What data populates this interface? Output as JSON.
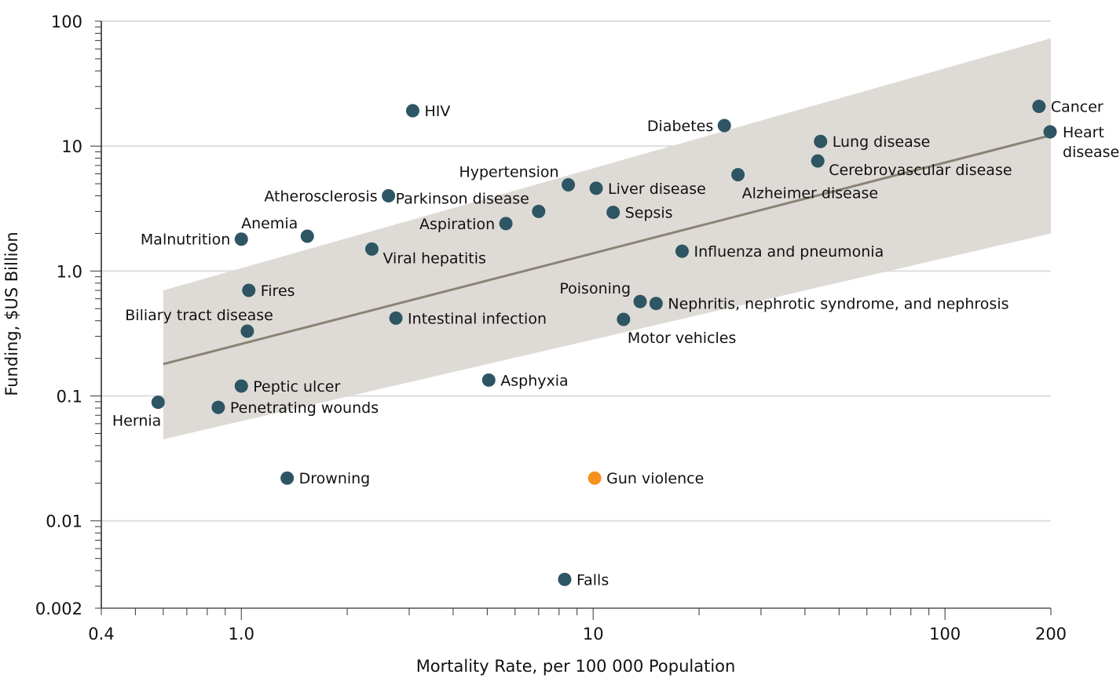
{
  "chart_data": {
    "type": "scatter",
    "title": "",
    "xlabel": "Mortality Rate, per 100 000 Population",
    "ylabel": "Funding, $US Billion",
    "xscale": "log",
    "yscale": "log",
    "xlim": [
      0.4,
      200
    ],
    "ylim": [
      0.002,
      100
    ],
    "x_ticks": [
      {
        "value": 0.4,
        "label": "0.4"
      },
      {
        "value": 1,
        "label": "1.0"
      },
      {
        "value": 10,
        "label": "10"
      },
      {
        "value": 100,
        "label": "100"
      },
      {
        "value": 200,
        "label": "200"
      }
    ],
    "y_ticks": [
      {
        "value": 100,
        "label": "100"
      },
      {
        "value": 10,
        "label": "10"
      },
      {
        "value": 1,
        "label": "1.0"
      },
      {
        "value": 0.1,
        "label": "0.1"
      },
      {
        "value": 0.01,
        "label": "0.01"
      },
      {
        "value": 0.002,
        "label": "0.002"
      }
    ],
    "grid": "horizontal at major y ticks",
    "colors": {
      "point": "#2e5563",
      "highlight": "#f5921e",
      "band": "#dcd9d4",
      "fit_line": "#8a8275",
      "grid": "#dddddd",
      "axis": "#222222"
    },
    "fit": {
      "line": [
        {
          "x": 0.6,
          "y": 0.18
        },
        {
          "x": 200,
          "y": 12.2
        }
      ],
      "band_upper": [
        {
          "x": 0.6,
          "y": 0.7
        },
        {
          "x": 200,
          "y": 73
        }
      ],
      "band_lower": [
        {
          "x": 0.6,
          "y": 0.045
        },
        {
          "x": 200,
          "y": 2.0
        }
      ]
    },
    "points": [
      {
        "label": "HIV",
        "x": 3.07,
        "y": 19.2,
        "highlight": false,
        "anchor": "right"
      },
      {
        "label": "Diabetes",
        "x": 23.6,
        "y": 14.6,
        "highlight": false,
        "anchor": "left"
      },
      {
        "label": "Cancer",
        "x": 185,
        "y": 20.8,
        "highlight": false,
        "anchor": "right"
      },
      {
        "label": "Heart disease",
        "x": 199,
        "y": 13.0,
        "highlight": false,
        "anchor": "right-2line"
      },
      {
        "label": "Lung disease",
        "x": 44.3,
        "y": 10.9,
        "highlight": false,
        "anchor": "right"
      },
      {
        "label": "Cerebrovascular disease",
        "x": 43.5,
        "y": 7.6,
        "highlight": false,
        "anchor": "right-below"
      },
      {
        "label": "Alzheimer disease",
        "x": 25.8,
        "y": 5.9,
        "highlight": false,
        "anchor": "below-right"
      },
      {
        "label": "Hypertension",
        "x": 8.5,
        "y": 4.9,
        "highlight": false,
        "anchor": "left-above"
      },
      {
        "label": "Liver disease",
        "x": 10.2,
        "y": 4.6,
        "highlight": false,
        "anchor": "right"
      },
      {
        "label": "Atherosclerosis",
        "x": 2.62,
        "y": 4.0,
        "highlight": false,
        "anchor": "left"
      },
      {
        "label": "Parkinson disease",
        "x": 7.0,
        "y": 3.0,
        "highlight": false,
        "anchor": "left-above"
      },
      {
        "label": "Sepsis",
        "x": 11.4,
        "y": 2.95,
        "highlight": false,
        "anchor": "right"
      },
      {
        "label": "Aspiration",
        "x": 5.65,
        "y": 2.4,
        "highlight": false,
        "anchor": "left"
      },
      {
        "label": "Anemia",
        "x": 1.54,
        "y": 1.9,
        "highlight": false,
        "anchor": "left-above"
      },
      {
        "label": "Malnutrition",
        "x": 1.0,
        "y": 1.8,
        "highlight": false,
        "anchor": "left"
      },
      {
        "label": "Viral hepatitis",
        "x": 2.35,
        "y": 1.5,
        "highlight": false,
        "anchor": "right-below"
      },
      {
        "label": "Influenza and pneumonia",
        "x": 17.9,
        "y": 1.44,
        "highlight": false,
        "anchor": "right"
      },
      {
        "label": "Fires",
        "x": 1.05,
        "y": 0.7,
        "highlight": false,
        "anchor": "right"
      },
      {
        "label": "Poisoning",
        "x": 13.6,
        "y": 0.57,
        "highlight": false,
        "anchor": "left-above"
      },
      {
        "label": "Nephritis, nephrotic syndrome, and nephrosis",
        "x": 15.1,
        "y": 0.55,
        "highlight": false,
        "anchor": "right"
      },
      {
        "label": "Intestinal infection",
        "x": 2.75,
        "y": 0.42,
        "highlight": false,
        "anchor": "right"
      },
      {
        "label": "Motor vehicles",
        "x": 12.2,
        "y": 0.41,
        "highlight": false,
        "anchor": "below-right"
      },
      {
        "label": "Biliary tract disease",
        "x": 1.04,
        "y": 0.33,
        "highlight": false,
        "anchor": "above-left"
      },
      {
        "label": "Asphyxia",
        "x": 5.05,
        "y": 0.134,
        "highlight": false,
        "anchor": "right"
      },
      {
        "label": "Peptic ulcer",
        "x": 1.0,
        "y": 0.12,
        "highlight": false,
        "anchor": "right"
      },
      {
        "label": "Hernia",
        "x": 0.58,
        "y": 0.089,
        "highlight": false,
        "anchor": "below-left"
      },
      {
        "label": "Penetrating wounds",
        "x": 0.86,
        "y": 0.081,
        "highlight": false,
        "anchor": "right"
      },
      {
        "label": "Drowning",
        "x": 1.35,
        "y": 0.022,
        "highlight": false,
        "anchor": "right"
      },
      {
        "label": "Gun violence",
        "x": 10.1,
        "y": 0.022,
        "highlight": true,
        "anchor": "right"
      },
      {
        "label": "Falls",
        "x": 8.3,
        "y": 0.0034,
        "highlight": false,
        "anchor": "right"
      }
    ]
  }
}
